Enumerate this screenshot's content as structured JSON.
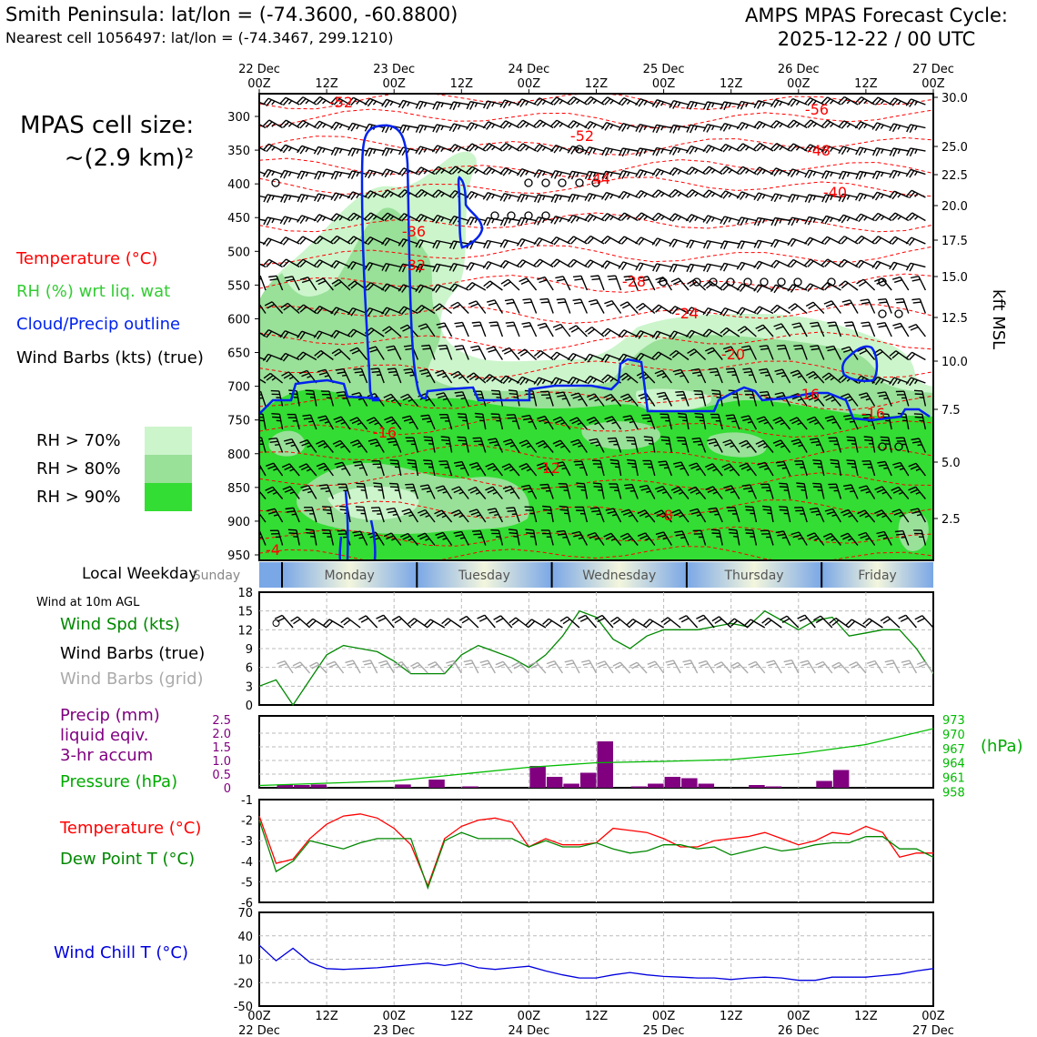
{
  "header": {
    "title": "Smith Peninsula: lat/lon = (-74.3600, -60.8800)",
    "subtitle": "Nearest cell 1056497: lat/lon = (-74.3467, 299.1210)",
    "cycle_line1": "AMPS MPAS Forecast Cycle:",
    "cycle_line2": "2025-12-22 / 00 UTC"
  },
  "cell_size": {
    "line1": "MPAS cell size:",
    "line2": "~(2.9 km)²"
  },
  "legend": {
    "temperature": "Temperature (°C)",
    "rh": "RH (%) wrt liq. wat",
    "cloud": "Cloud/Precip outline",
    "wind": "Wind Barbs (kts) (true)",
    "rh70": "RH > 70%",
    "rh80": "RH > 80%",
    "rh90": "RH > 90%"
  },
  "colors": {
    "rh70": "#ccf5cc",
    "rh80": "#99e099",
    "rh90": "#33dd33",
    "temp": "#ff0000",
    "cloud": "#0022ee",
    "green": "#008800",
    "precip": "#800080",
    "pressure": "#00bb00",
    "windchill": "#0000dd",
    "grid_barb": "#aaaaaa"
  },
  "top_axis": {
    "major": [
      {
        "date": "22 Dec",
        "time": "00Z"
      },
      {
        "date": "23 Dec",
        "time": "00Z"
      },
      {
        "date": "24 Dec",
        "time": "00Z"
      },
      {
        "date": "25 Dec",
        "time": "00Z"
      },
      {
        "date": "26 Dec",
        "time": "00Z"
      },
      {
        "date": "27 Dec",
        "time": "00Z"
      }
    ],
    "minor": [
      "12Z",
      "12Z",
      "12Z",
      "12Z",
      "12Z"
    ]
  },
  "bottom_axis": {
    "times": [
      "00Z",
      "12Z",
      "00Z",
      "12Z",
      "00Z",
      "12Z",
      "00Z",
      "12Z",
      "00Z",
      "12Z",
      "00Z"
    ],
    "dates": [
      "22 Dec",
      "23 Dec",
      "24 Dec",
      "25 Dec",
      "26 Dec",
      "27 Dec"
    ]
  },
  "weekday": {
    "label": "Local Weekday",
    "days": [
      "Sunday",
      "Monday",
      "Tuesday",
      "Wednesday",
      "Thursday",
      "Friday"
    ]
  },
  "pressure_axis": {
    "ticks": [
      300,
      350,
      400,
      450,
      500,
      550,
      600,
      650,
      700,
      750,
      800,
      850,
      900,
      950
    ]
  },
  "kft_axis": {
    "label": "kft MSL",
    "ticks": [
      "30.0",
      "25.0",
      "22.5",
      "20.0",
      "17.5",
      "15.0",
      "12.5",
      "10.0",
      "7.5",
      "5.0",
      "2.5"
    ]
  },
  "temp_labels": [
    "-52",
    "-56",
    "-52",
    "-48",
    "-44",
    "-40",
    "-36",
    "-32",
    "-28",
    "-24",
    "-20",
    "-16",
    "-16",
    "-16",
    "-12",
    "-8",
    "-4"
  ],
  "panels": {
    "wind10": {
      "heading": "Wind at 10m AGL",
      "spd_label": "Wind Spd (kts)",
      "barb_label": "Wind Barbs (true)",
      "grid_label": "Wind Barbs (grid)",
      "yticks": [
        "18",
        "15",
        "12",
        "9",
        "6",
        "3",
        "0"
      ]
    },
    "precip": {
      "label1": "Precip (mm)",
      "label2": "liquid eqiv.",
      "label3": "3-hr accum",
      "press_label": "Pressure (hPa)",
      "hpa": "(hPa)",
      "yticks": [
        "2.5",
        "2.0",
        "1.5",
        "1.0",
        "0.5",
        "0"
      ],
      "pticks": [
        "973",
        "970",
        "967",
        "964",
        "961",
        "958"
      ]
    },
    "temp": {
      "label1": "Temperature (°C)",
      "label2": "Dew Point T (°C)",
      "yticks": [
        "-1",
        "-2",
        "-3",
        "-4",
        "-5",
        "-6"
      ]
    },
    "chill": {
      "label": "Wind Chill T (°C)",
      "yticks": [
        "70",
        "40",
        "10",
        "-20",
        "-50"
      ]
    }
  },
  "chart_data": [
    {
      "type": "bar",
      "title": "Precip (mm) liquid eqiv. 3-hr accum",
      "x_hours": [
        3,
        6,
        9,
        12,
        15,
        18,
        21,
        24,
        27,
        30,
        33,
        36,
        39,
        42,
        45,
        48,
        51,
        54,
        57,
        60,
        63,
        66,
        69,
        72,
        75,
        78,
        81,
        84,
        87,
        90,
        93,
        96,
        99,
        102,
        105,
        108,
        111,
        114,
        117
      ],
      "values": [
        0,
        0.12,
        0.1,
        0.12,
        0,
        0,
        0,
        0,
        0.12,
        0,
        0.3,
        0,
        0.05,
        0,
        0,
        0,
        0.8,
        0.4,
        0.15,
        0.55,
        1.7,
        0,
        0.05,
        0.15,
        0.4,
        0.35,
        0.15,
        0,
        0,
        0.1,
        0.05,
        0,
        0,
        0.25,
        0.65,
        0,
        0,
        0,
        0
      ],
      "ylim": [
        0,
        2.5
      ]
    },
    {
      "type": "line",
      "title": "Pressure (hPa)",
      "x_hours": [
        0,
        12,
        24,
        36,
        48,
        60,
        72,
        84,
        96,
        108,
        120
      ],
      "values": [
        958.5,
        959,
        959.5,
        961,
        962.5,
        963.5,
        963.8,
        964.2,
        965.5,
        967.5,
        971
      ],
      "ylim": [
        958,
        973
      ]
    },
    {
      "type": "line",
      "title": "Wind Spd (kts)",
      "x_hours": [
        0,
        3,
        6,
        9,
        12,
        15,
        18,
        21,
        24,
        27,
        30,
        33,
        36,
        39,
        42,
        45,
        48,
        51,
        54,
        57,
        60,
        63,
        66,
        69,
        72,
        75,
        78,
        81,
        84,
        87,
        90,
        93,
        96,
        99,
        102,
        105,
        108,
        111,
        114,
        117,
        120
      ],
      "values": [
        3,
        4,
        0,
        4,
        8,
        9.5,
        9,
        8.5,
        7,
        5,
        5,
        5,
        8,
        9.5,
        8.5,
        7.5,
        6,
        8,
        11,
        15,
        14,
        10.5,
        9,
        11,
        12,
        12,
        12,
        12.5,
        13,
        12.5,
        15,
        13.5,
        12,
        13.5,
        14,
        11,
        11.5,
        12,
        12,
        9,
        5
      ],
      "ylim": [
        0,
        18
      ]
    },
    {
      "type": "line",
      "title": "Temperature (°C)",
      "x_hours": [
        0,
        3,
        6,
        9,
        12,
        15,
        18,
        21,
        24,
        27,
        30,
        33,
        36,
        39,
        42,
        45,
        48,
        51,
        54,
        57,
        60,
        63,
        66,
        69,
        72,
        75,
        78,
        81,
        84,
        87,
        90,
        93,
        96,
        99,
        102,
        105,
        108,
        111,
        114,
        117,
        120
      ],
      "values": [
        -1.8,
        -4.1,
        -3.9,
        -2.9,
        -2.2,
        -1.8,
        -1.7,
        -1.9,
        -2.4,
        -3.2,
        -5.2,
        -2.9,
        -2.3,
        -2.0,
        -1.9,
        -2.1,
        -3.3,
        -2.9,
        -3.2,
        -3.2,
        -3.1,
        -2.4,
        -2.5,
        -2.6,
        -2.9,
        -3.3,
        -3.3,
        -3.0,
        -2.9,
        -2.8,
        -2.6,
        -2.9,
        -3.2,
        -3.0,
        -2.6,
        -2.7,
        -2.3,
        -2.6,
        -3.8,
        -3.6,
        -3.6
      ],
      "ylim": [
        -6,
        -1
      ]
    },
    {
      "type": "line",
      "title": "Dew Point T (°C)",
      "x_hours": [
        0,
        3,
        6,
        9,
        12,
        15,
        18,
        21,
        24,
        27,
        30,
        33,
        36,
        39,
        42,
        45,
        48,
        51,
        54,
        57,
        60,
        63,
        66,
        69,
        72,
        75,
        78,
        81,
        84,
        87,
        90,
        93,
        96,
        99,
        102,
        105,
        108,
        111,
        114,
        117,
        120
      ],
      "values": [
        -2.0,
        -4.5,
        -4.0,
        -3.0,
        -3.2,
        -3.4,
        -3.1,
        -2.9,
        -2.9,
        -2.9,
        -5.3,
        -3.0,
        -2.6,
        -2.9,
        -2.9,
        -2.9,
        -3.3,
        -3.0,
        -3.3,
        -3.3,
        -3.1,
        -3.4,
        -3.6,
        -3.5,
        -3.2,
        -3.2,
        -3.4,
        -3.3,
        -3.7,
        -3.5,
        -3.3,
        -3.5,
        -3.4,
        -3.2,
        -3.1,
        -3.1,
        -2.8,
        -2.8,
        -3.4,
        -3.4,
        -3.8
      ],
      "ylim": [
        -6,
        -1
      ]
    },
    {
      "type": "line",
      "title": "Wind Chill T (°C)",
      "x_hours": [
        0,
        3,
        6,
        9,
        12,
        15,
        18,
        21,
        24,
        27,
        30,
        33,
        36,
        39,
        42,
        45,
        48,
        51,
        54,
        57,
        60,
        63,
        66,
        69,
        72,
        75,
        78,
        81,
        84,
        87,
        90,
        93,
        96,
        99,
        102,
        105,
        108,
        111,
        114,
        117,
        120
      ],
      "values": [
        28,
        8,
        24,
        6,
        -2,
        -3,
        -2,
        -1,
        1,
        3,
        5,
        2,
        5,
        -1,
        -3,
        -1,
        1,
        -5,
        -10,
        -14,
        -14,
        -10,
        -7,
        -10,
        -12,
        -13,
        -14,
        -14,
        -16,
        -14,
        -13,
        -14,
        -17,
        -17,
        -13,
        -13,
        -13,
        -11,
        -9,
        -5,
        -2
      ],
      "ylim": [
        -50,
        70
      ]
    }
  ]
}
